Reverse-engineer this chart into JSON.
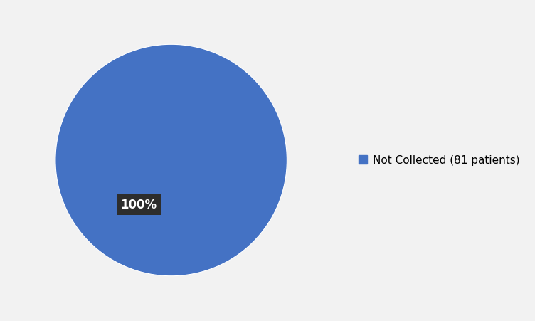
{
  "slices": [
    100
  ],
  "colors": [
    "#4472C4"
  ],
  "labels": [
    "Not Collected (81 patients)"
  ],
  "pct_label": "100%",
  "pct_label_bg": "#2d2d2d",
  "pct_label_fg": "#ffffff",
  "legend_text": "Not Collected (81 patients)",
  "legend_color": "#4472C4",
  "background_color": "#f2f2f2",
  "startangle": 90,
  "legend_fontsize": 11,
  "pct_fontsize": 12
}
